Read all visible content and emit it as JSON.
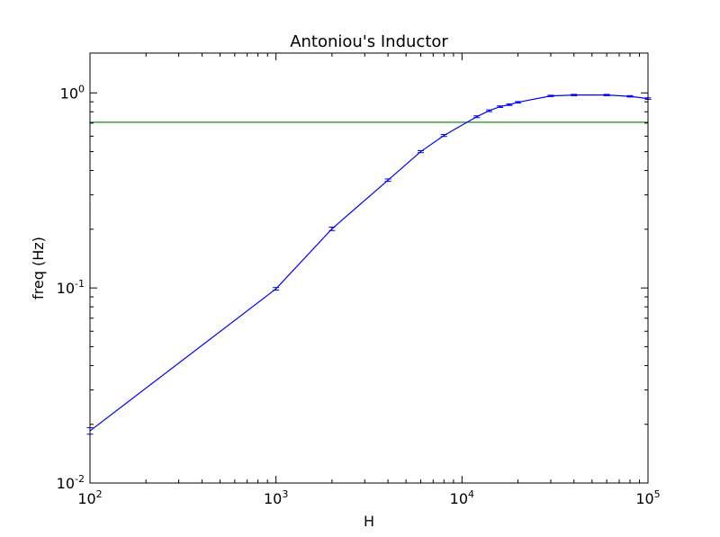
{
  "chart_data": {
    "type": "line",
    "title": "Antoniou's Inductor",
    "xlabel": "H",
    "ylabel": "freq (Hz)",
    "xscale": "log",
    "yscale": "log",
    "xlim": [
      100,
      100000
    ],
    "ylim": [
      0.01,
      1.6
    ],
    "grid": false,
    "x_tick_labels": [
      {
        "value": 100,
        "base": "10",
        "exp": "2"
      },
      {
        "value": 1000,
        "base": "10",
        "exp": "3"
      },
      {
        "value": 10000,
        "base": "10",
        "exp": "4"
      },
      {
        "value": 100000,
        "base": "10",
        "exp": "5"
      }
    ],
    "y_tick_labels": [
      {
        "value": 0.01,
        "base": "10",
        "exp": "-2"
      },
      {
        "value": 0.1,
        "base": "10",
        "exp": "-1"
      },
      {
        "value": 1,
        "base": "10",
        "exp": "0"
      }
    ],
    "series": [
      {
        "color": "#0000ff",
        "error_bars": true,
        "points": [
          {
            "x": 100,
            "y": 0.0185,
            "err": 0.0007
          },
          {
            "x": 1000,
            "y": 0.099,
            "err": 0.0015
          },
          {
            "x": 2000,
            "y": 0.201,
            "err": 0.004
          },
          {
            "x": 4000,
            "y": 0.357,
            "err": 0.005
          },
          {
            "x": 6000,
            "y": 0.5,
            "err": 0.006
          },
          {
            "x": 8000,
            "y": 0.605,
            "err": 0.007
          },
          {
            "x": 12000,
            "y": 0.755,
            "err": 0.008
          },
          {
            "x": 14000,
            "y": 0.81,
            "err": 0.008
          },
          {
            "x": 16000,
            "y": 0.85,
            "err": 0.008
          },
          {
            "x": 18000,
            "y": 0.87,
            "err": 0.008
          },
          {
            "x": 20000,
            "y": 0.895,
            "err": 0.008
          },
          {
            "x": 30000,
            "y": 0.965,
            "err": 0.008
          },
          {
            "x": 40000,
            "y": 0.975,
            "err": 0.008
          },
          {
            "x": 60000,
            "y": 0.975,
            "err": 0.008
          },
          {
            "x": 80000,
            "y": 0.96,
            "err": 0.008
          },
          {
            "x": 100000,
            "y": 0.935,
            "err": 0.008
          }
        ]
      }
    ],
    "reference_lines": [
      {
        "orientation": "horizontal",
        "y": 0.707,
        "color": "#008000"
      }
    ]
  }
}
